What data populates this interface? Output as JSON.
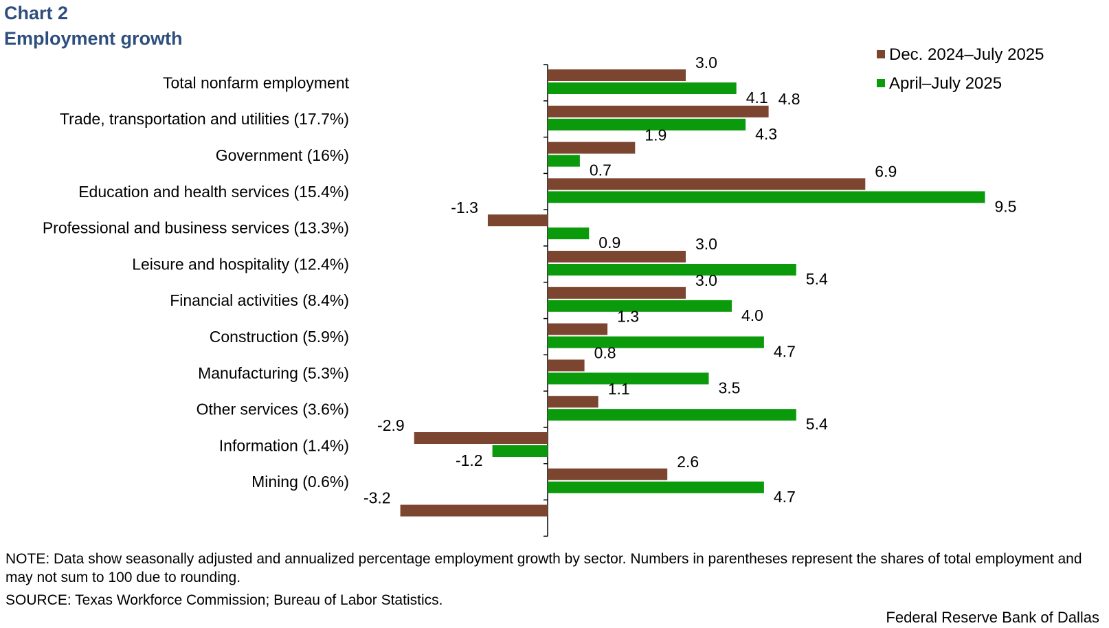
{
  "title_line1": "Chart 2",
  "title_line2": "Employment  growth",
  "note": "NOTE: Data show seasonally adjusted and annualized percentage employment growth by sector. Numbers in parentheses represent the shares of total employment and may not sum to 100 due to rounding.",
  "source": "SOURCE: Texas  Workforce Commission; Bureau of Labor Statistics.",
  "footer": "Federal Reserve Bank of Dallas",
  "chart_data": {
    "type": "bar",
    "orientation": "horizontal",
    "title": "Employment growth",
    "categories": [
      "Total nonfarm employment",
      "Trade, transportation and utilities (17.7%)",
      "Government (16%)",
      "Education and health services (15.4%)",
      "Professional and business services (13.3%)",
      "Leisure and hospitality (12.4%)",
      "Financial activities (8.4%)",
      "Construction (5.9%)",
      "Manufacturing (5.3%)",
      "Other services (3.6%)",
      "Information (1.4%)",
      "Mining (0.6%)",
      ""
    ],
    "series": [
      {
        "name": "Dec. 2024–July 2025",
        "color": "#7b4530",
        "values": [
          3.0,
          4.8,
          1.9,
          6.9,
          -1.3,
          3.0,
          3.0,
          1.3,
          0.8,
          1.1,
          -2.9,
          2.6,
          -3.2
        ],
        "labels": [
          "3.0",
          "4.8",
          "1.9",
          "6.9",
          "-1.3",
          "3.0",
          "3.0",
          "1.3",
          "0.8",
          "1.1",
          "-2.9",
          "2.6",
          "-3.2"
        ]
      },
      {
        "name": "April–July 2025",
        "color": "#0b9a0b",
        "values": [
          4.1,
          4.3,
          0.7,
          9.5,
          0.9,
          5.4,
          4.0,
          4.7,
          3.5,
          5.4,
          -1.2,
          4.7,
          null
        ],
        "labels": [
          "4.1",
          "4.3",
          "0.7",
          "9.5",
          "0.9",
          "5.4",
          "4.0",
          "4.7",
          "3.5",
          "5.4",
          "-1.2",
          "4.7",
          ""
        ]
      }
    ],
    "xlabel": "",
    "ylabel": "",
    "legend_position": "top-right"
  }
}
